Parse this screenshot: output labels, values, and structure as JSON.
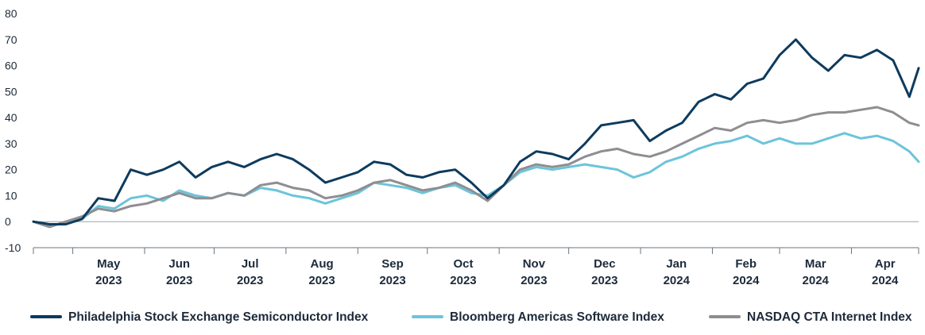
{
  "chart_data": {
    "type": "line",
    "title": "",
    "xlabel": "",
    "ylabel": "",
    "ylim": [
      -10,
      80
    ],
    "yticks": [
      -10,
      0,
      10,
      20,
      30,
      40,
      50,
      60,
      70,
      80
    ],
    "grid": false,
    "legend": "bottom",
    "months": [
      {
        "month": "May",
        "year": "2023"
      },
      {
        "month": "Jun",
        "year": "2023"
      },
      {
        "month": "Jul",
        "year": "2023"
      },
      {
        "month": "Aug",
        "year": "2023"
      },
      {
        "month": "Sep",
        "year": "2023"
      },
      {
        "month": "Oct",
        "year": "2023"
      },
      {
        "month": "Nov",
        "year": "2023"
      },
      {
        "month": "Dec",
        "year": "2023"
      },
      {
        "month": "Jan",
        "year": "2024"
      },
      {
        "month": "Feb",
        "year": "2024"
      },
      {
        "month": "Mar",
        "year": "2024"
      },
      {
        "month": "Apr",
        "year": "2024"
      }
    ],
    "x": [
      "2023-04-14",
      "2023-04-21",
      "2023-04-28",
      "2023-05-05",
      "2023-05-12",
      "2023-05-19",
      "2023-05-26",
      "2023-06-02",
      "2023-06-09",
      "2023-06-16",
      "2023-06-23",
      "2023-06-30",
      "2023-07-07",
      "2023-07-14",
      "2023-07-21",
      "2023-07-28",
      "2023-08-04",
      "2023-08-11",
      "2023-08-18",
      "2023-08-25",
      "2023-09-01",
      "2023-09-08",
      "2023-09-15",
      "2023-09-22",
      "2023-09-29",
      "2023-10-06",
      "2023-10-13",
      "2023-10-20",
      "2023-10-27",
      "2023-11-03",
      "2023-11-10",
      "2023-11-17",
      "2023-11-24",
      "2023-12-01",
      "2023-12-08",
      "2023-12-15",
      "2023-12-22",
      "2023-12-29",
      "2024-01-05",
      "2024-01-12",
      "2024-01-19",
      "2024-01-26",
      "2024-02-02",
      "2024-02-09",
      "2024-02-16",
      "2024-02-23",
      "2024-03-01",
      "2024-03-08",
      "2024-03-15",
      "2024-03-22",
      "2024-03-29",
      "2024-04-05",
      "2024-04-12",
      "2024-04-19",
      "2024-04-26",
      "2024-04-30"
    ],
    "series": [
      {
        "name": "Philadelphia Stock Exchange Semiconductor Index",
        "color": "#0d3b5e",
        "values": [
          0,
          -1,
          -1,
          1,
          9,
          8,
          20,
          18,
          20,
          23,
          17,
          21,
          23,
          21,
          24,
          26,
          24,
          20,
          15,
          17,
          19,
          23,
          22,
          18,
          17,
          19,
          20,
          15,
          9,
          14,
          23,
          27,
          26,
          24,
          30,
          37,
          38,
          39,
          31,
          35,
          38,
          46,
          49,
          47,
          53,
          55,
          64,
          70,
          63,
          58,
          64,
          63,
          66,
          62,
          48,
          59
        ]
      },
      {
        "name": "Bloomberg Americas Software Index",
        "color": "#6cc4da",
        "values": [
          0,
          -2,
          0,
          1,
          6,
          5,
          9,
          10,
          8,
          12,
          10,
          9,
          11,
          10,
          13,
          12,
          10,
          9,
          7,
          9,
          11,
          15,
          14,
          13,
          11,
          13,
          14,
          11,
          10,
          14,
          19,
          21,
          20,
          21,
          22,
          21,
          20,
          17,
          19,
          23,
          25,
          28,
          30,
          31,
          33,
          30,
          32,
          30,
          30,
          32,
          34,
          32,
          33,
          31,
          27,
          23
        ]
      },
      {
        "name": "NASDAQ CTA Internet Index",
        "color": "#8e8e92",
        "values": [
          0,
          -2,
          0,
          2,
          5,
          4,
          6,
          7,
          9,
          11,
          9,
          9,
          11,
          10,
          14,
          15,
          13,
          12,
          9,
          10,
          12,
          15,
          16,
          14,
          12,
          13,
          15,
          12,
          8,
          14,
          20,
          22,
          21,
          22,
          25,
          27,
          28,
          26,
          25,
          27,
          30,
          33,
          36,
          35,
          38,
          39,
          38,
          39,
          41,
          42,
          42,
          43,
          44,
          42,
          38,
          37
        ]
      }
    ]
  }
}
